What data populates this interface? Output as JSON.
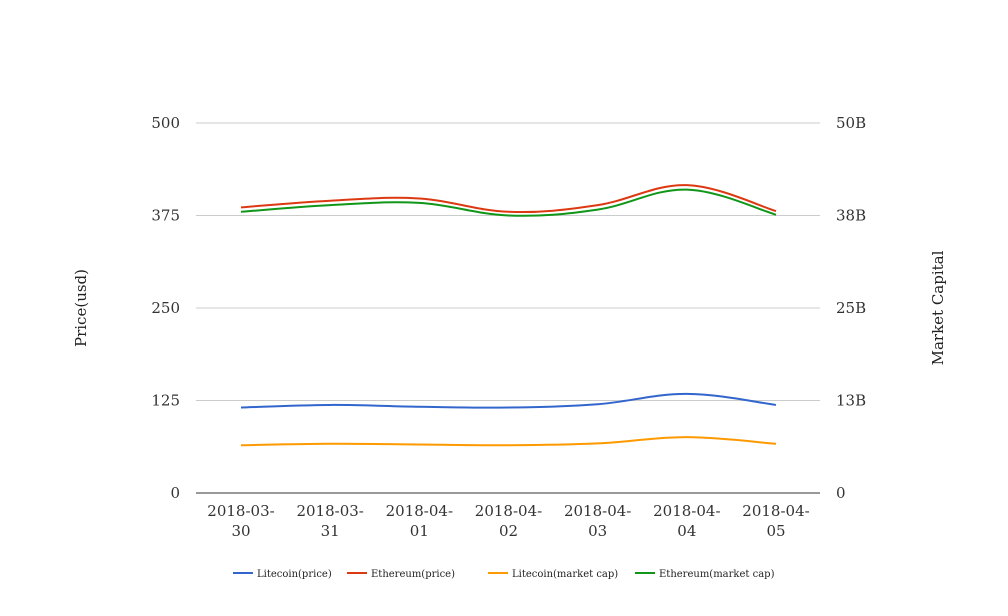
{
  "chart_data": {
    "type": "line",
    "categories": [
      [
        "2018-03-",
        "30"
      ],
      [
        "2018-03-",
        "31"
      ],
      [
        "2018-04-",
        "01"
      ],
      [
        "2018-04-",
        "02"
      ],
      [
        "2018-04-",
        "03"
      ],
      [
        "2018-04-",
        "04"
      ],
      [
        "2018-04-",
        "05"
      ]
    ],
    "ylabel": "Price(usd)",
    "y2label": "Market Capital",
    "ylim": [
      0,
      500
    ],
    "y_ticks": [
      "0",
      "125",
      "250",
      "375",
      "500"
    ],
    "y2lim": [
      0,
      50
    ],
    "y2_ticks": [
      "0",
      "13B",
      "25B",
      "38B",
      "50B"
    ],
    "grid": true,
    "legend_position": "bottom",
    "series": [
      {
        "name": "Litecoin(price)",
        "axis": "left",
        "color": "#3366cc",
        "values": [
          115.5,
          119,
          116.5,
          115.5,
          120,
          134,
          119
        ]
      },
      {
        "name": "Ethereum(price)",
        "axis": "left",
        "color": "#dc3912",
        "values": [
          386,
          395,
          398,
          380,
          389,
          416,
          381
        ]
      },
      {
        "name": "Litecoin(market cap)",
        "axis": "right",
        "color": "#ff9900",
        "values": [
          6.45,
          6.65,
          6.55,
          6.45,
          6.7,
          7.55,
          6.65
        ]
      },
      {
        "name": "Ethereum(market cap)",
        "axis": "right",
        "color": "#109618",
        "values": [
          38.0,
          38.9,
          39.2,
          37.5,
          38.3,
          41.0,
          37.6
        ]
      }
    ]
  }
}
